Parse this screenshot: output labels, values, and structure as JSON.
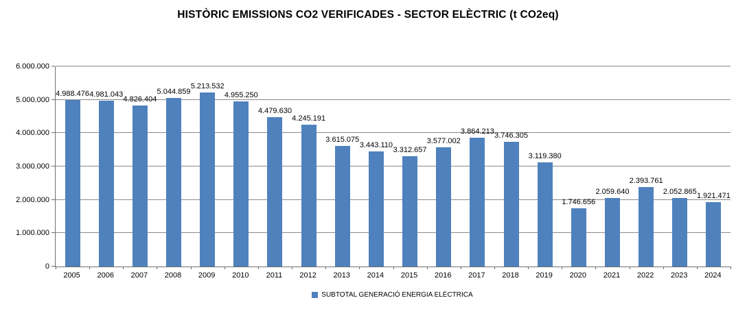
{
  "title": "HISTÒRIC EMISSIONS CO2 VERIFICADES - SECTOR ELÈCTRIC (t CO2eq)",
  "legend": {
    "label": "SUBTOTAL GENERACIÓ ENERGIA ELÈCTRICA",
    "swatch_color": "#4F81BD"
  },
  "colors": {
    "bar": "#4F81BD",
    "gridline": "#8A8A8A",
    "axis": "#6E6E6E",
    "text": "#000000",
    "background": "#FFFFFF"
  },
  "chart_data": {
    "type": "bar",
    "title": "HISTÒRIC EMISSIONS CO2 VERIFICADES - SECTOR ELÈCTRIC (t CO2eq)",
    "categories": [
      "2005",
      "2006",
      "2007",
      "2008",
      "2009",
      "2010",
      "2011",
      "2012",
      "2013",
      "2014",
      "2015",
      "2016",
      "2017",
      "2018",
      "2019",
      "2020",
      "2021",
      "2022",
      "2023",
      "2024"
    ],
    "series": [
      {
        "name": "SUBTOTAL GENERACIÓ ENERGIA ELÈCTRICA",
        "color": "#4F81BD",
        "values": [
          4988476,
          4981043,
          4826404,
          5044859,
          5213532,
          4955250,
          4479630,
          4245191,
          3615075,
          3443110,
          3312657,
          3577002,
          3864213,
          3746305,
          3119380,
          1746656,
          2059640,
          2393761,
          2052865,
          1921471
        ],
        "labels": [
          "4.988.476",
          "4.981.043",
          "4.826.404",
          "5.044.859",
          "5.213.532",
          "4.955.250",
          "4.479.630",
          "4.245.191",
          "3.615.075",
          "3.443.110",
          "3.312.657",
          "3.577.002",
          "3.864.213",
          "3.746.305",
          "3.119.380",
          "1.746.656",
          "2.059.640",
          "2.393.761",
          "2.052.865",
          "1.921.471"
        ]
      }
    ],
    "xlabel": "",
    "ylabel": "",
    "ylim": [
      0,
      6000000
    ],
    "ytick_step": 1000000,
    "ytick_labels": [
      "0",
      "1.000.000",
      "2.000.000",
      "3.000.000",
      "4.000.000",
      "5.000.000",
      "6.000.000"
    ],
    "grid": true,
    "data_labels": true,
    "legend_position": "bottom"
  }
}
